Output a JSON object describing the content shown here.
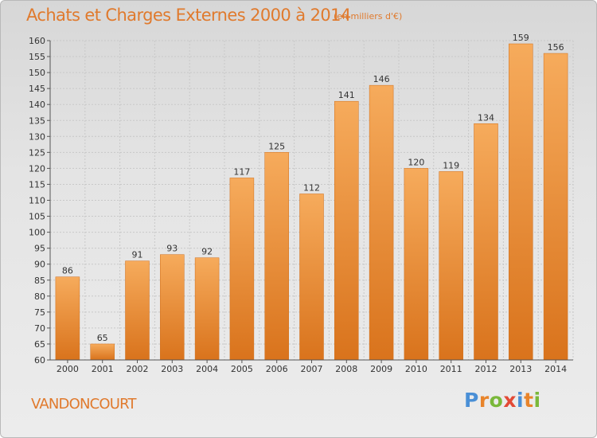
{
  "chart_data": {
    "type": "bar",
    "title": "Achats et Charges Externes 2000 à 2014",
    "subtitle": "(en milliers d'€)",
    "categories": [
      "2000",
      "2001",
      "2002",
      "2003",
      "2004",
      "2005",
      "2006",
      "2007",
      "2008",
      "2009",
      "2010",
      "2011",
      "2012",
      "2013",
      "2014"
    ],
    "values": [
      86,
      65,
      91,
      93,
      92,
      117,
      125,
      112,
      141,
      146,
      120,
      119,
      134,
      159,
      156
    ],
    "ylim": [
      60,
      160
    ],
    "yticks": [
      60,
      65,
      70,
      75,
      80,
      85,
      90,
      95,
      100,
      105,
      110,
      115,
      120,
      125,
      130,
      135,
      140,
      145,
      150,
      155,
      160
    ],
    "grid": true,
    "bar_color": "#f09a44",
    "bar_color_light": "#f6ab5c",
    "bar_color_dark": "#d9731c"
  },
  "footer": {
    "place": "VANDONCOURT",
    "brand_letters": [
      {
        "ch": "P",
        "color": "#4a8fd6"
      },
      {
        "ch": "r",
        "color": "#e8842b"
      },
      {
        "ch": "o",
        "color": "#7ab83a"
      },
      {
        "ch": "x",
        "color": "#e24a36"
      },
      {
        "ch": "i",
        "color": "#4a8fd6"
      },
      {
        "ch": "t",
        "color": "#e8842b"
      },
      {
        "ch": "i",
        "color": "#7ab83a"
      }
    ]
  }
}
